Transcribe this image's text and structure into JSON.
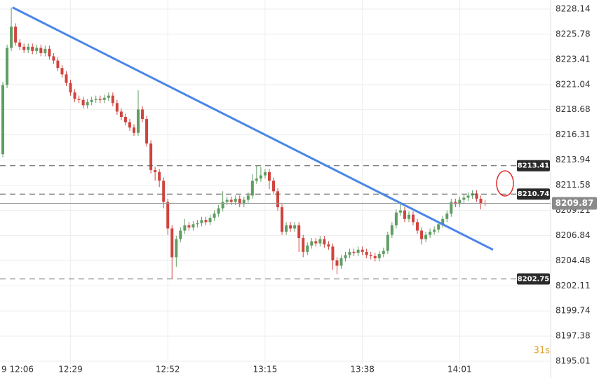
{
  "chart_data": {
    "type": "candlestick",
    "x": [
      13,
      14,
      15,
      16,
      17,
      18,
      19,
      20,
      21,
      22,
      23,
      24,
      25,
      26,
      27,
      28,
      29,
      30,
      31,
      32,
      33,
      34,
      35,
      36,
      37,
      38,
      39,
      40,
      41,
      42,
      43,
      44,
      45,
      46,
      47,
      48,
      49,
      50,
      51,
      52,
      53,
      54,
      55,
      56,
      57,
      58,
      59,
      60,
      61,
      62,
      63,
      64,
      65,
      66,
      67,
      68,
      69,
      70,
      71,
      72,
      73,
      74,
      75,
      76,
      77,
      78,
      79,
      80,
      81,
      82,
      83,
      84,
      85,
      86,
      87,
      88,
      89,
      90,
      91,
      92,
      93,
      94,
      95,
      96,
      97,
      98,
      99,
      100,
      101,
      102,
      103,
      104,
      105,
      106,
      107,
      108,
      109,
      110,
      111,
      112,
      113,
      114,
      115,
      116,
      117,
      118,
      119,
      120,
      121,
      122,
      123,
      124,
      125,
      126,
      127
    ],
    "open": [
      8214.5,
      8221.0,
      8224.5,
      8226.5,
      8225.0,
      8224.6,
      8224.3,
      8224.6,
      8224.2,
      8224.5,
      8224.0,
      8224.4,
      8223.7,
      8223.3,
      8222.6,
      8222.0,
      8221.2,
      8220.3,
      8219.7,
      8219.6,
      8219.1,
      8219.4,
      8219.6,
      8219.7,
      8219.6,
      8219.8,
      8220.0,
      8219.3,
      8218.5,
      8218.0,
      8217.5,
      8217.0,
      8216.5,
      8218.7,
      8217.8,
      8215.5,
      8213.0,
      8212.8,
      8212.0,
      8210.0,
      8207.5,
      8204.8,
      8206.5,
      8207.3,
      8207.8,
      8207.6,
      8207.9,
      8208.0,
      8208.3,
      8208.1,
      8208.5,
      8208.9,
      8209.4,
      8210.0,
      8210.2,
      8210.0,
      8210.3,
      8209.8,
      8210.2,
      8210.6,
      8212.0,
      8212.2,
      8212.5,
      8212.8,
      8212.0,
      8211.0,
      8209.5,
      8207.2,
      8207.8,
      8207.5,
      8207.8,
      8206.6,
      8205.3,
      8205.9,
      8206.3,
      8206.1,
      8206.5,
      8206.0,
      8205.8,
      8204.5,
      8204.0,
      8204.7,
      8205.0,
      8205.3,
      8205.2,
      8205.5,
      8205.3,
      8205.0,
      8204.9,
      8204.7,
      8205.1,
      8205.4,
      8206.9,
      8207.8,
      8209.0,
      8209.2,
      8208.4,
      8208.8,
      8208.1,
      8207.3,
      8206.5,
      8206.9,
      8207.2,
      8207.4,
      8207.9,
      8208.4,
      8208.9,
      8210.0,
      8209.8,
      8210.2,
      8210.4,
      8210.6,
      8210.8,
      8210.3,
      8209.9
    ],
    "high": [
      8221.3,
      8224.8,
      8228.3,
      8226.8,
      8225.3,
      8224.9,
      8224.9,
      8224.9,
      8224.8,
      8224.8,
      8224.7,
      8224.7,
      8224.0,
      8223.6,
      8222.9,
      8222.3,
      8221.5,
      8220.6,
      8220.0,
      8219.9,
      8219.7,
      8219.9,
      8220.0,
      8220.0,
      8220.1,
      8220.3,
      8220.3,
      8219.6,
      8218.8,
      8218.3,
      8217.8,
      8217.3,
      8220.5,
      8219.0,
      8218.1,
      8215.8,
      8213.3,
      8213.1,
      8212.3,
      8210.3,
      8207.8,
      8206.8,
      8207.6,
      8208.4,
      8208.1,
      8208.2,
      8208.3,
      8208.6,
      8208.6,
      8208.8,
      8209.2,
      8209.7,
      8211.0,
      8210.5,
      8210.5,
      8210.6,
      8210.6,
      8210.5,
      8210.9,
      8212.6,
      8213.4,
      8213.3,
      8213.1,
      8213.1,
      8212.3,
      8211.3,
      8209.8,
      8208.1,
      8208.1,
      8208.1,
      8208.1,
      8206.9,
      8206.2,
      8206.6,
      8206.6,
      8206.8,
      8206.8,
      8206.3,
      8206.1,
      8204.8,
      8205.0,
      8205.3,
      8205.6,
      8205.6,
      8205.8,
      8205.8,
      8205.6,
      8205.3,
      8205.2,
      8205.4,
      8205.7,
      8207.2,
      8208.1,
      8209.3,
      8210.0,
      8209.5,
      8209.1,
      8209.1,
      8208.4,
      8207.6,
      8207.2,
      8207.5,
      8207.7,
      8208.2,
      8208.7,
      8209.2,
      8210.3,
      8210.3,
      8210.5,
      8210.7,
      8210.9,
      8211.1,
      8211.1,
      8210.6,
      8210.2
    ],
    "low": [
      8214.2,
      8220.7,
      8224.2,
      8224.7,
      8224.3,
      8224.0,
      8224.0,
      8223.9,
      8223.9,
      8223.7,
      8223.7,
      8223.4,
      8223.0,
      8222.3,
      8221.7,
      8220.9,
      8220.0,
      8219.4,
      8219.3,
      8218.8,
      8218.8,
      8219.1,
      8219.3,
      8219.3,
      8219.3,
      8219.5,
      8219.0,
      8218.2,
      8217.7,
      8217.2,
      8216.7,
      8216.2,
      8216.2,
      8217.5,
      8215.2,
      8212.7,
      8212.0,
      8211.4,
      8209.4,
      8206.9,
      8202.75,
      8203.9,
      8206.2,
      8207.0,
      8207.3,
      8207.3,
      8207.6,
      8207.7,
      8207.8,
      8207.8,
      8208.2,
      8208.6,
      8209.1,
      8209.7,
      8209.7,
      8209.7,
      8209.5,
      8209.5,
      8209.9,
      8210.3,
      8211.7,
      8211.9,
      8212.2,
      8211.2,
      8210.7,
      8209.2,
      8206.9,
      8206.9,
      8207.2,
      8207.2,
      8205.3,
      8204.8,
      8205.0,
      8205.6,
      8205.8,
      8205.8,
      8205.7,
      8205.5,
      8203.6,
      8203.2,
      8203.7,
      8204.4,
      8204.7,
      8204.9,
      8204.9,
      8205.0,
      8204.7,
      8204.6,
      8204.4,
      8204.4,
      8204.8,
      8205.1,
      8206.6,
      8207.5,
      8208.7,
      8208.1,
      8208.1,
      8207.8,
      8207.0,
      8206.0,
      8206.2,
      8206.6,
      8206.9,
      8207.1,
      8207.6,
      8208.1,
      8208.6,
      8209.5,
      8209.5,
      8209.9,
      8210.1,
      8210.3,
      8210.0,
      8209.3,
      8209.6
    ],
    "close": [
      8221.0,
      8224.5,
      8226.5,
      8225.0,
      8224.6,
      8224.3,
      8224.6,
      8224.2,
      8224.5,
      8224.0,
      8224.4,
      8223.7,
      8223.3,
      8222.6,
      8222.0,
      8221.2,
      8220.3,
      8219.7,
      8219.6,
      8219.1,
      8219.4,
      8219.6,
      8219.7,
      8219.6,
      8219.8,
      8220.0,
      8219.3,
      8218.5,
      8218.0,
      8217.5,
      8217.0,
      8216.5,
      8218.7,
      8217.8,
      8215.5,
      8213.0,
      8212.8,
      8212.0,
      8210.0,
      8207.5,
      8204.8,
      8206.5,
      8207.3,
      8207.8,
      8207.6,
      8207.9,
      8208.0,
      8208.3,
      8208.1,
      8208.5,
      8208.9,
      8209.4,
      8210.0,
      8210.2,
      8210.0,
      8210.3,
      8209.8,
      8210.2,
      8210.6,
      8212.0,
      8212.2,
      8212.5,
      8212.8,
      8212.0,
      8211.0,
      8209.5,
      8207.2,
      8207.8,
      8207.5,
      8207.8,
      8206.6,
      8205.3,
      8205.9,
      8206.3,
      8206.1,
      8206.5,
      8206.0,
      8205.8,
      8204.5,
      8204.0,
      8204.7,
      8205.0,
      8205.3,
      8205.2,
      8205.5,
      8205.3,
      8205.0,
      8204.9,
      8204.7,
      8205.1,
      8205.4,
      8206.9,
      8207.8,
      8209.0,
      8209.2,
      8208.4,
      8208.8,
      8208.1,
      8207.3,
      8206.5,
      8206.9,
      8207.2,
      8207.4,
      8207.9,
      8208.4,
      8208.9,
      8210.0,
      8209.8,
      8210.2,
      8210.4,
      8210.6,
      8210.8,
      8210.3,
      8209.9,
      8209.87
    ],
    "up_color": "#5e9e61",
    "down_color": "#d0443e",
    "xlim": [
      12.33,
      142.5
    ],
    "ylim": [
      8194.75,
      8229.0
    ],
    "xticks": [
      {
        "value": 6,
        "label": "9 12:06"
      },
      {
        "value": 29,
        "label": "12:29"
      },
      {
        "value": 52,
        "label": "12:52"
      },
      {
        "value": 75,
        "label": "13:15"
      },
      {
        "value": 98,
        "label": "13:38"
      },
      {
        "value": 121,
        "label": "14:01"
      }
    ],
    "yticks": [
      8228.14,
      8225.78,
      8223.41,
      8221.04,
      8218.68,
      8216.31,
      8213.94,
      8211.58,
      8209.21,
      8206.84,
      8204.48,
      8202.11,
      8199.74,
      8197.38,
      8195.01
    ],
    "grid": true,
    "levels": [
      8213.41,
      8210.74,
      8202.75
    ],
    "current_price": 8209.87,
    "trendline": {
      "x": [
        15.3,
        128.9
      ],
      "y": [
        8228.3,
        8205.5
      ],
      "color": "#4a86e8"
    },
    "timer": "31s"
  }
}
